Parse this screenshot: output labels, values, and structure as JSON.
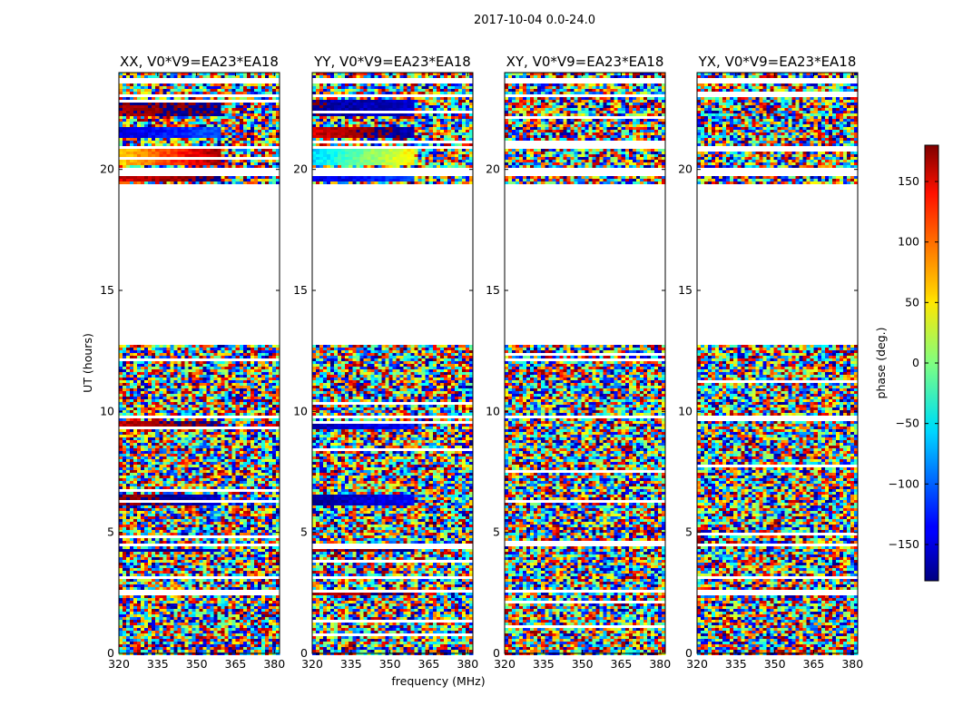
{
  "figure": {
    "suptitle": "2017-10-04 0.0-24.0",
    "xlabel": "frequency (MHz)",
    "ylabel": "UT (hours)",
    "colorbar_label": "phase (deg.)"
  },
  "chart_data": {
    "type": "heatmap",
    "title": "2017-10-04 0.0-24.0",
    "xlabel": "frequency (MHz)",
    "ylabel": "UT (hours)",
    "xlim": [
      320,
      382
    ],
    "ylim": [
      0,
      24
    ],
    "x_ticks": [
      "320",
      "335",
      "350",
      "365",
      "380"
    ],
    "x_tick_values": [
      320,
      335,
      350,
      365,
      380
    ],
    "y_ticks": [
      "0",
      "5",
      "10",
      "15",
      "20"
    ],
    "y_tick_values": [
      0,
      5,
      10,
      15,
      20
    ],
    "colormap": "jet",
    "color_scale": {
      "label": "phase (deg.)",
      "range": [
        -180,
        180
      ],
      "ticks": [
        "150",
        "100",
        "50",
        "0",
        "−50",
        "−100",
        "−150"
      ],
      "tick_values": [
        150,
        100,
        50,
        0,
        -50,
        -100,
        -150
      ]
    },
    "data_gaps_hours": [
      [
        12.8,
        19.4
      ],
      [
        19.75,
        20.1
      ],
      [
        20.9,
        21.0
      ],
      [
        23.0,
        23.1
      ],
      [
        23.6,
        23.75
      ],
      [
        9.7,
        9.8
      ],
      [
        4.4,
        4.5
      ],
      [
        2.5,
        2.6
      ]
    ],
    "panels": [
      {
        "title": "XX, V0*V9=EA23*EA18",
        "coherent_phase": true
      },
      {
        "title": "YY, V0*V9=EA23*EA18",
        "coherent_phase": true
      },
      {
        "title": "XY, V0*V9=EA23*EA18",
        "coherent_phase": false
      },
      {
        "title": "YX, V0*V9=EA23*EA18",
        "coherent_phase": false
      }
    ]
  }
}
